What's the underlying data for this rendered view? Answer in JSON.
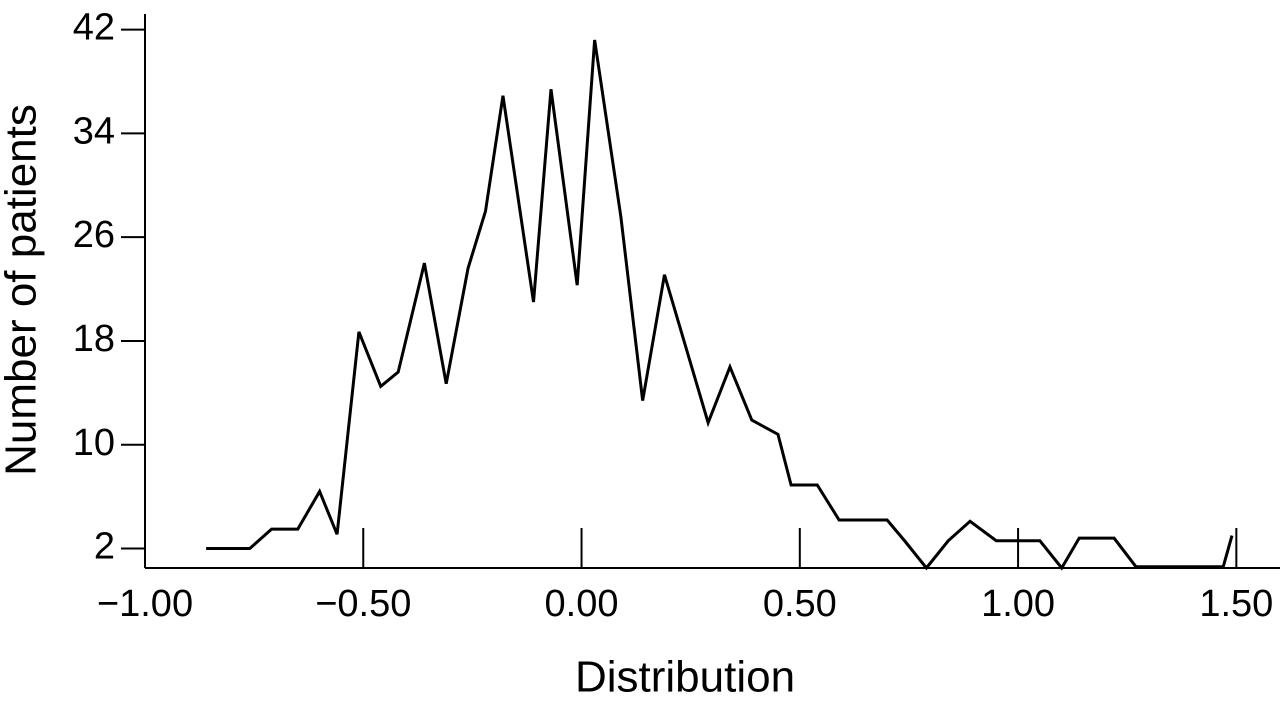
{
  "chart_data": {
    "type": "line",
    "xlabel": "Distribution",
    "ylabel": "Number of patients",
    "x": [
      -0.86,
      -0.76,
      -0.71,
      -0.65,
      -0.6,
      -0.56,
      -0.51,
      -0.46,
      -0.42,
      -0.36,
      -0.31,
      -0.26,
      -0.22,
      -0.18,
      -0.11,
      -0.07,
      -0.01,
      0.03,
      0.09,
      0.14,
      0.19,
      0.29,
      0.34,
      0.39,
      0.45,
      0.48,
      0.54,
      0.59,
      0.7,
      0.74,
      0.79,
      0.84,
      0.89,
      0.95,
      1.05,
      1.1,
      1.14,
      1.22,
      1.27,
      1.47,
      1.49
    ],
    "series": [
      {
        "name": "Patients",
        "color": "#000000",
        "values": [
          2,
          2,
          3.5,
          3.5,
          6.4,
          3.1,
          18.7,
          14.5,
          15.6,
          24,
          14.7,
          23.6,
          28,
          36.9,
          21,
          37.4,
          22.3,
          41.2,
          27.6,
          13.4,
          23.1,
          11.7,
          16,
          11.9,
          10.8,
          6.9,
          6.9,
          4.2,
          4.2,
          2.6,
          0.5,
          2.6,
          4.1,
          2.6,
          2.6,
          0.5,
          2.8,
          2.8,
          0.6,
          0.6,
          3
        ]
      }
    ],
    "xlim": [
      -1,
      1.6
    ],
    "ylim": [
      0.5,
      43.2
    ],
    "xticks": [
      {
        "value": -1,
        "label": "−1.00"
      },
      {
        "value": -0.5,
        "label": "−0.50"
      },
      {
        "value": 0,
        "label": "0.00"
      },
      {
        "value": 0.5,
        "label": "0.50"
      },
      {
        "value": 1,
        "label": "1.00"
      },
      {
        "value": 1.5,
        "label": "1.50"
      }
    ],
    "yticks": [
      2,
      10,
      18,
      26,
      34,
      42
    ]
  }
}
